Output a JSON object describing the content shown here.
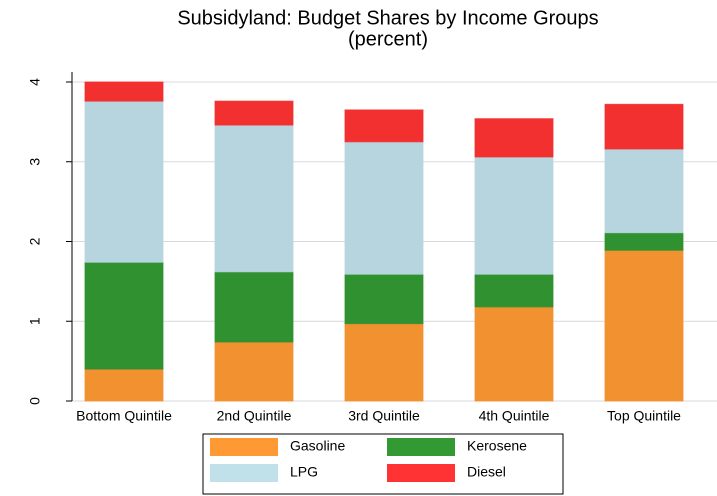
{
  "chart_data": {
    "type": "stacked_bar",
    "title": "Subsidyland: Budget Shares by Income Groups",
    "subtitle": "(percent)",
    "categories": [
      "Bottom Quintile",
      "2nd Quintile",
      "3rd Quintile",
      "4th Quintile",
      "Top Quintile"
    ],
    "series": [
      {
        "name": "Gasoline",
        "color": "#ff9933",
        "values": [
          0.4,
          0.74,
          0.97,
          1.18,
          1.89
        ]
      },
      {
        "name": "Kerosene",
        "color": "#339933",
        "values": [
          1.34,
          0.88,
          0.62,
          0.41,
          0.22
        ]
      },
      {
        "name": "LPG",
        "color": "#c0e0ea",
        "values": [
          2.02,
          1.84,
          1.66,
          1.47,
          1.05
        ]
      },
      {
        "name": "Diesel",
        "color": "#ff3333",
        "values": [
          0.24,
          0.3,
          0.4,
          0.48,
          0.56
        ]
      }
    ],
    "ylim": [
      0,
      4
    ],
    "yticks": [
      0,
      1,
      2,
      3,
      4
    ],
    "grid": true
  }
}
